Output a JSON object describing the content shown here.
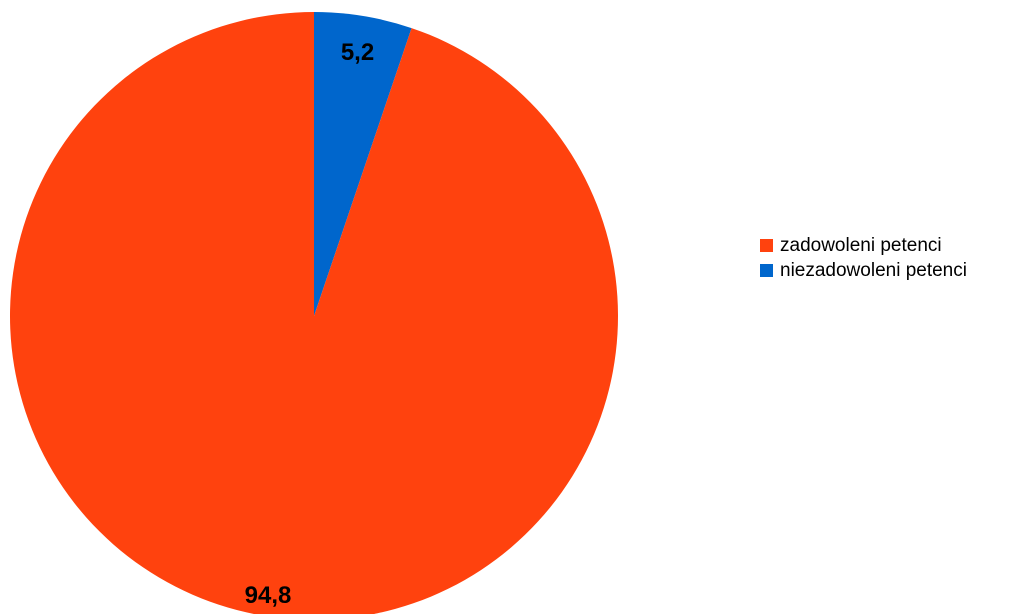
{
  "chart_data": {
    "type": "pie",
    "categories": [
      "zadowoleni petenci",
      "niezadowoleni petenci"
    ],
    "values": [
      94.8,
      5.2
    ],
    "value_labels": [
      "94,8",
      "5,2"
    ],
    "colors": [
      "#ff420e",
      "#0066cc"
    ],
    "legend_position": "right",
    "title": ""
  },
  "legend": {
    "items": [
      {
        "label": "zadowoleni petenci",
        "color": "#ff420e"
      },
      {
        "label": "niezadowoleni petenci",
        "color": "#0066cc"
      }
    ]
  }
}
